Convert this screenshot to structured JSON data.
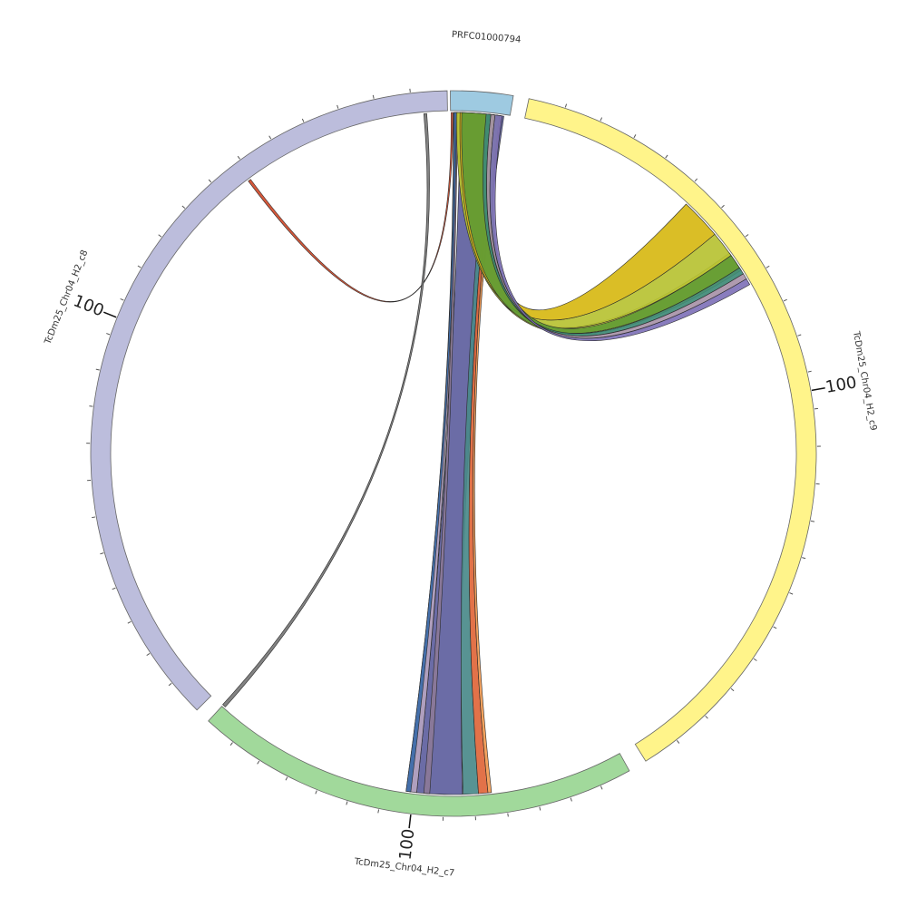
{
  "figure": {
    "type": "circos",
    "segments": [
      {
        "id": "top",
        "label": "PRFC01000794",
        "color": "#9ecae1",
        "start_deg": 359.5,
        "end_deg": 9.5,
        "ticks": 0,
        "major_tick_label": ""
      },
      {
        "id": "right",
        "label": "TcDm25_Chr04_H2_c9",
        "color": "#fff48a",
        "start_deg": 12,
        "end_deg": 148,
        "ticks": 22,
        "major_tick_label": "100"
      },
      {
        "id": "bottom",
        "label": "TcDm25_Chr04_H2_c7",
        "color": "#a1d99b",
        "start_deg": 151,
        "end_deg": 222.5,
        "ticks": 13,
        "major_tick_label": "100"
      },
      {
        "id": "left",
        "label": "TcDm25_Chr04_H2_c8",
        "color": "#bcbddc",
        "start_deg": 225,
        "end_deg": 359,
        "ticks": 22,
        "major_tick_label": "100"
      }
    ],
    "links": [
      {
        "a": [
          1.2,
          8.5
        ],
        "b": [
          178.5,
          186.2
        ],
        "color": "#5e5f9e"
      },
      {
        "a": [
          6.0,
          6.9
        ],
        "b": [
          175.8,
          178.4
        ],
        "color": "#4a8a8a"
      },
      {
        "a": [
          6.9,
          7.5
        ],
        "b": [
          174.2,
          175.8
        ],
        "color": "#e0663a"
      },
      {
        "a": [
          7.5,
          8.0
        ],
        "b": [
          173.6,
          174.2
        ],
        "color": "#f39a50"
      },
      {
        "a": [
          0.0,
          0.6
        ],
        "b": [
          186.2,
          188.0
        ],
        "color": "#a897b8"
      },
      {
        "a": [
          0.2,
          0.7
        ],
        "b": [
          184.0,
          185.0
        ],
        "color": "#8c7a98"
      },
      {
        "a": [
          0.1,
          0.5
        ],
        "b": [
          187.2,
          188.0
        ],
        "color": "#3b6aa8"
      },
      {
        "a": [
          0.7,
          1.1
        ],
        "b": [
          54.0,
          57.5
        ],
        "color": "#d6cf3a"
      },
      {
        "a": [
          0.5,
          1.2
        ],
        "b": [
          50.0,
          54.5
        ],
        "color": "#b7c233"
      },
      {
        "a": [
          1.1,
          8.0
        ],
        "b": [
          43.0,
          50.0
        ],
        "color": "#d7b814"
      },
      {
        "a": [
          1.4,
          7.8
        ],
        "b": [
          54.5,
          57.0
        ],
        "color": "#5f9a34"
      },
      {
        "a": [
          5.5,
          6.3
        ],
        "b": [
          57.0,
          58.2
        ],
        "color": "#3e8a76"
      },
      {
        "a": [
          6.3,
          7.0
        ],
        "b": [
          58.2,
          59.2
        ],
        "color": "#a893a8"
      },
      {
        "a": [
          7.0,
          8.2
        ],
        "b": [
          59.2,
          60.3
        ],
        "color": "#7f72b8"
      },
      {
        "a": [
          359.6,
          359.9
        ],
        "b": [
          323.0,
          323.5
        ],
        "color": "#d04a2a"
      },
      {
        "a": [
          355.0,
          355.5
        ],
        "b": [
          222.0,
          222.6
        ],
        "color": "#777777"
      }
    ]
  }
}
